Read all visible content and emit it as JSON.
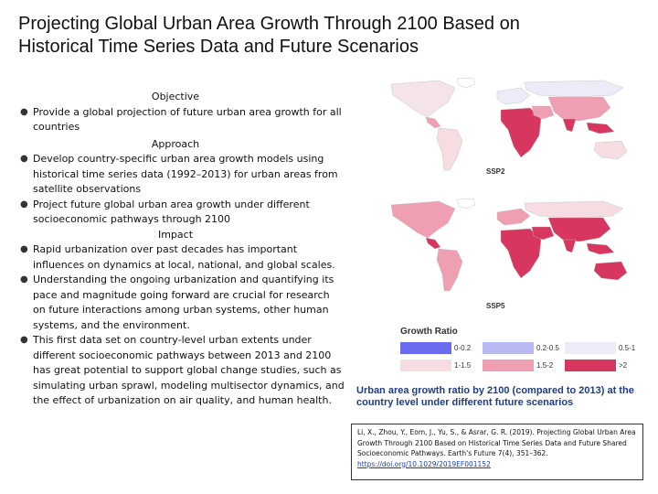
{
  "title_line1": "Projecting Global Urban Area Growth Through 2100 Based on",
  "title_line2": "Historical Time Series Data and Future Scenarios",
  "sections": {
    "objective": "Objective",
    "approach": "Approach",
    "impact": "Impact"
  },
  "bullets": [
    "Provide a global projection of future urban area growth for all countries",
    "Develop country-specific urban area growth models using historical time series data (1992–2013) for urban areas from satellite observations",
    "Project future global urban area growth under different socioeconomic pathways through 2100",
    "Rapid urbanization over past decades has important influences on dynamics at local, national, and global scales.",
    "Understanding the ongoing urbanization and quantifying its pace and magnitude going forward are crucial for research on future interactions among urban systems, other human systems, and the environment.",
    "This first data set on country-level urban extents under different socioeconomic pathways between 2013 and 2100 has great potential to support global change studies, such as simulating urban sprawl, modeling multisector dynamics, and the effect of urbanization on air quality, and human health."
  ],
  "bullet_glyph": "●",
  "maps": {
    "top_label": "SSP2",
    "bottom_label": "SSP5"
  },
  "legend": {
    "title": "Growth Ratio",
    "items": [
      {
        "label": "0-0.2",
        "color": "#6b6bf0"
      },
      {
        "label": "0.2-0.5",
        "color": "#b9b9f2"
      },
      {
        "label": "0.5-1",
        "color": "#ececf8"
      },
      {
        "label": "1-1.5",
        "color": "#f6dde2"
      },
      {
        "label": "1.5-2",
        "color": "#ee9fb2"
      },
      {
        "label": ">2",
        "color": "#d7375f"
      }
    ]
  },
  "caption": "Urban area growth ratio by 2100 (compared to 2013) at the country level under different future scenarios",
  "reference": {
    "text": "Li, X., Zhou, Y., Eom, J., Yu, S., & Asrar, G. R. (2019). Projecting Global Urban Area Growth Through 2100 Based on Historical Time Series Data and Future Shared Socioeconomic Pathways. Earth's Future 7(4), 351–362.",
    "link": "https://doi.org/10.1029/2019EF001152"
  },
  "colors": {
    "caption": "#1f3c88",
    "link": "#1a3fa8",
    "high_growth": "#d7375f",
    "mid_growth": "#ee9fb2",
    "low_growth": "#f6dde2"
  }
}
